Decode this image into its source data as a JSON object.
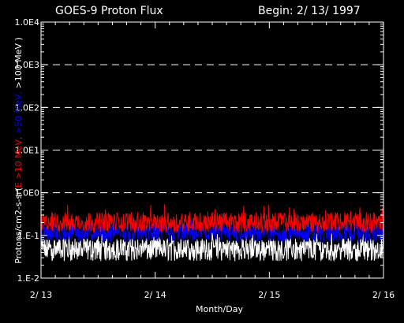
{
  "chart_data": {
    "type": "line",
    "title": "GOES-9 Proton Flux",
    "subtitle": "Begin: 2/ 13/ 1997",
    "xlabel": "Month/Day",
    "ylabel_parts": [
      {
        "text": "Protons/cm2-s-sr(",
        "color": "#ffffff"
      },
      {
        "text": "E >10 MeV, ",
        "color": "#ff0000"
      },
      {
        "text": ">50 MeV, ",
        "color": "#0000ff"
      },
      {
        "text": ">100 MeV )",
        "color": "#ffffff"
      }
    ],
    "x_ticks": [
      "2/ 13",
      "2/ 14",
      "2/ 15",
      "2/ 16"
    ],
    "x_range_days": [
      0,
      3
    ],
    "y_scale": "log",
    "ylim": [
      0.01,
      10000
    ],
    "y_ticks": [
      {
        "value": 0.01,
        "label": "1.E-2"
      },
      {
        "value": 0.1,
        "label": "1.E-1"
      },
      {
        "value": 1,
        "label": "1.0E0"
      },
      {
        "value": 10,
        "label": "1.0E1"
      },
      {
        "value": 100,
        "label": "1.0E2"
      },
      {
        "value": 1000,
        "label": "1.0E3"
      },
      {
        "value": 10000,
        "label": "1.0E4"
      }
    ],
    "grid": {
      "horizontal_dashed_at": [
        1,
        10,
        100,
        1000
      ]
    },
    "series": [
      {
        "color": "#ff0000",
        "typical_value": 0.2,
        "range": [
          0.12,
          0.55
        ]
      },
      {
        "color": "#0000ff",
        "typical_value": 0.12,
        "range": [
          0.07,
          0.25
        ]
      },
      {
        "color": "#ffffff",
        "typical_value": 0.05,
        "range": [
          0.025,
          0.13
        ]
      }
    ]
  }
}
